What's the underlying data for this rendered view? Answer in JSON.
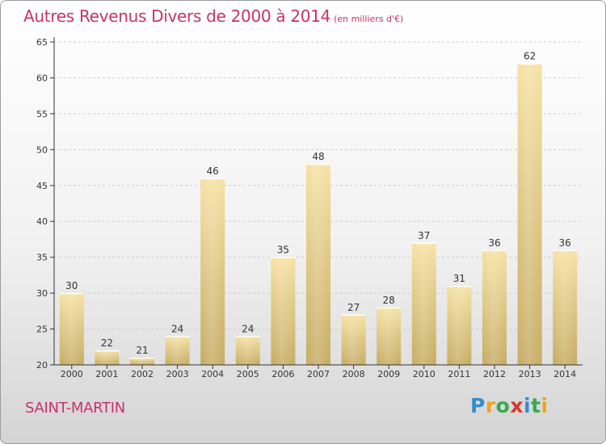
{
  "header": {
    "title": "Autres Revenus Divers de 2000 à 2014",
    "subtitle": "(en milliers d'€)"
  },
  "footer": {
    "location": "SAINT-MARTIN",
    "brand": {
      "letters": [
        "P",
        "r",
        "o",
        "x",
        "i",
        "t",
        "i"
      ],
      "colors": [
        "#2f8fd0",
        "#f3a21a",
        "#39a94a",
        "#d9342b",
        "#2f8fd0",
        "#39a94a",
        "#f3a21a"
      ]
    }
  },
  "colors": {
    "title": "#c8336a",
    "bar_light": "#f6e1a3",
    "bar_dark": "#c5ab63",
    "axis": "#333333",
    "grid": "#cccccc"
  },
  "chart_data": {
    "type": "bar",
    "title": "Autres Revenus Divers de 2000 à 2014",
    "subtitle": "(en milliers d'€)",
    "xlabel": "",
    "ylabel": "",
    "categories": [
      "2000",
      "2001",
      "2002",
      "2003",
      "2004",
      "2005",
      "2006",
      "2007",
      "2008",
      "2009",
      "2010",
      "2011",
      "2012",
      "2013",
      "2014"
    ],
    "values": [
      30,
      22,
      21,
      24,
      46,
      24,
      35,
      48,
      27,
      28,
      37,
      31,
      36,
      62,
      36
    ],
    "ylim": [
      20,
      65
    ],
    "yticks": [
      20,
      25,
      30,
      35,
      40,
      45,
      50,
      55,
      60,
      65
    ],
    "grid": true,
    "legend": "none"
  }
}
